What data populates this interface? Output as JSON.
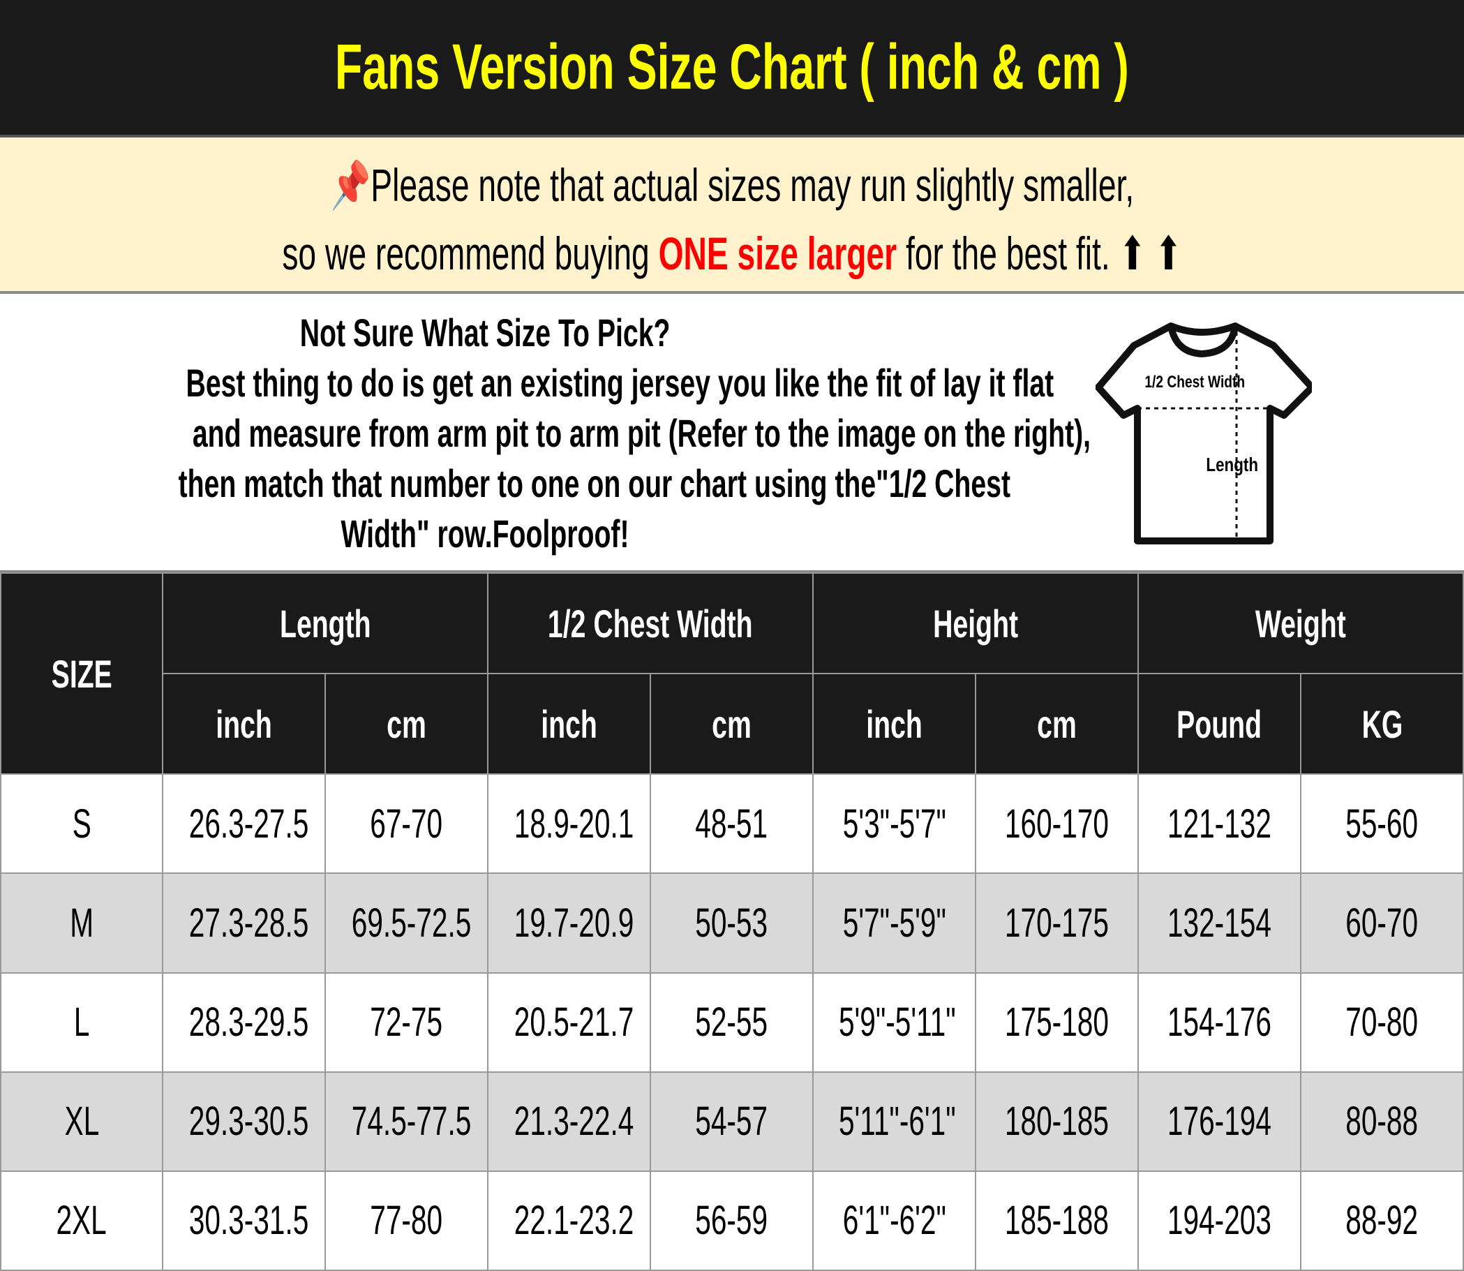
{
  "title": "Fans Version Size Chart ( inch & cm )",
  "notice": {
    "icon": "pushpin-icon",
    "line1": "Please note that actual sizes may run slightly smaller,",
    "line2_pre": "so we recommend buying ",
    "line2_highlight": "ONE size larger",
    "line2_post": " for the best fit.",
    "arrows": "⬆ ⬆",
    "highlight_color": "#ff0000"
  },
  "guide": {
    "lines": [
      "Not Sure What Size To Pick?",
      "Best thing to do is get an existing jersey you like the fit of lay it flat",
      "and measure from arm pit to arm pit (Refer to the image on the right),",
      "then match that number to one on our chart using the\"1/2 Chest",
      "Width\" row.Foolproof!"
    ],
    "diagram": {
      "chest_label": "1/2 Chest Width",
      "length_label": "Length"
    }
  },
  "table": {
    "size_header": "SIZE",
    "groups": [
      "Length",
      "1/2 Chest Width",
      "Height",
      "Weight"
    ],
    "units": [
      "inch",
      "cm",
      "inch",
      "cm",
      "inch",
      "cm",
      "Pound",
      "KG"
    ],
    "rows": [
      [
        "S",
        "26.3-27.5",
        "67-70",
        "18.9-20.1",
        "48-51",
        "5'3\"-5'7\"",
        "160-170",
        "121-132",
        "55-60"
      ],
      [
        "M",
        "27.3-28.5",
        "69.5-72.5",
        "19.7-20.9",
        "50-53",
        "5'7\"-5'9\"",
        "170-175",
        "132-154",
        "60-70"
      ],
      [
        "L",
        "28.3-29.5",
        "72-75",
        "20.5-21.7",
        "52-55",
        "5'9\"-5'11\"",
        "175-180",
        "154-176",
        "70-80"
      ],
      [
        "XL",
        "29.3-30.5",
        "74.5-77.5",
        "21.3-22.4",
        "54-57",
        "5'11\"-6'1\"",
        "180-185",
        "176-194",
        "80-88"
      ],
      [
        "2XL",
        "30.3-31.5",
        "77-80",
        "22.1-23.2",
        "56-59",
        "6'1\"-6'2\"",
        "185-188",
        "194-203",
        "88-92"
      ]
    ]
  }
}
